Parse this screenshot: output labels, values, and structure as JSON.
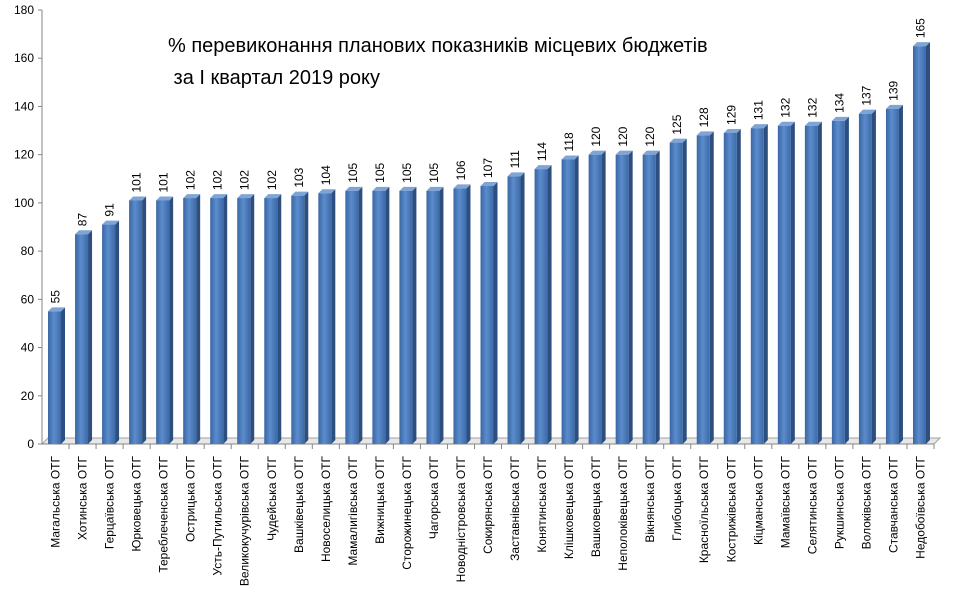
{
  "chart_data": {
    "type": "bar",
    "title_lines": [
      "% перевиконання  планових показників місцевих бюджетів",
      " за І квартал 2019 року"
    ],
    "xlabel": "",
    "ylabel": "",
    "ylim": [
      0,
      180
    ],
    "yticks": [
      0,
      20,
      40,
      60,
      80,
      100,
      120,
      140,
      160,
      180
    ],
    "grid": false,
    "style": "3d-column",
    "bar_color": "#4F81BD",
    "categories": [
      "Магальська ОТГ",
      "Хотинська ОТГ",
      "Герцаївська ОТГ",
      "Юрковецька ОТГ",
      "Тереблеченська ОТГ",
      "Острицька ОТГ",
      "Усть-Путильська ОТГ",
      "Великокучурівська ОТГ",
      "Чудейська ОТГ",
      "Вашківецька ОТГ",
      "Новоселицька ОТГ",
      "Мамалигівська ОТГ",
      "Вижницька ОТГ",
      "Сторожинецька ОТГ",
      "Чагорська ОТГ",
      "Новодністровська ОТГ",
      "Сокирянська ОТГ",
      "Заставнівська ОТГ",
      "Конятинська ОТГ",
      "Клішковецька ОТГ",
      "Вашковецька ОТГ",
      "Неполоківецька ОТГ",
      "Вікнянська ОТГ",
      "Глибоцька ОТГ",
      "Красноїльська ОТГ",
      "Кострижівська ОТГ",
      "Кіцманська ОТГ",
      "Мамаївська ОТГ",
      "Селятинська ОТГ",
      "Рукшинська ОТГ",
      "Волоківська ОТГ",
      "Ставчанська ОТГ",
      "Недобоївська ОТГ"
    ],
    "values": [
      55,
      87,
      91,
      101,
      101,
      102,
      102,
      102,
      102,
      103,
      104,
      105,
      105,
      105,
      105,
      106,
      107,
      111,
      114,
      118,
      120,
      120,
      120,
      125,
      128,
      129,
      131,
      132,
      132,
      134,
      137,
      139,
      165
    ]
  }
}
